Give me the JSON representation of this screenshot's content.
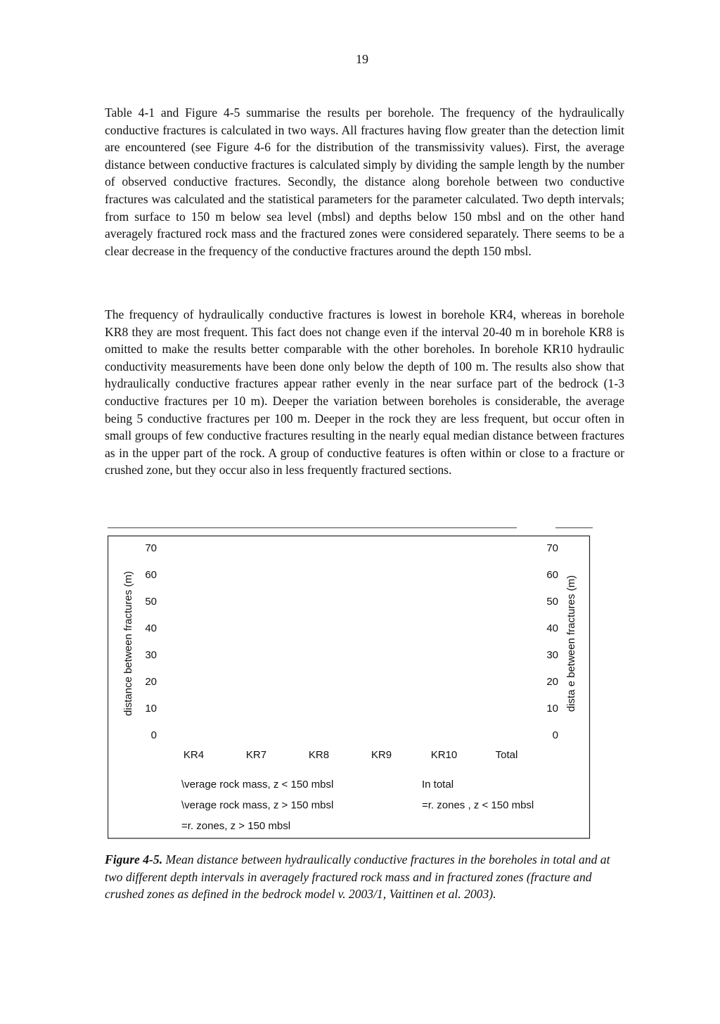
{
  "page_number": 19,
  "paragraphs": [
    "Table 4-1 and Figure 4-5 summarise the results per borehole. The frequency of the hydraulically conductive fractures is calculated in two ways. All fractures having flow greater than the detection limit are encountered (see Figure 4-6 for the distribution of the transmissivity values). First, the average distance between conductive fractures is calculated simply by dividing the sample length by the number of observed conductive fractures. Secondly, the distance along borehole between two conductive fractures was calculated and the statistical parameters for the parameter calculated. Two depth intervals; from surface to 150 m below sea level (mbsl) and depths below 150 mbsl and on the other hand averagely fractured rock mass and the fractured zones were considered separately. There seems to be a clear decrease in the frequency of the conductive fractures around the depth 150 mbsl.",
    "The frequency of hydraulically conductive fractures is lowest in borehole KR4, whereas in borehole KR8 they are most frequent. This fact does not change even if the interval 20-40 m in borehole KR8 is omitted to make the results better comparable with the other boreholes. In borehole KR10 hydraulic conductivity measurements have been done only below the depth of 100 m. The results also show that hydraulically conductive fractures appear rather evenly in the near surface part of the bedrock (1-3 conductive fractures per 10 m). Deeper the variation between boreholes is considerable, the average being 5 conductive fractures per 100 m. Deeper in the rock they are less frequent, but occur often in small groups of few conductive fractures resulting in the nearly equal median distance between fractures as in the upper part of the rock. A group of conductive features is often within or close to a fracture or crushed zone, but they occur also in less frequently fractured sections."
  ],
  "figure": {
    "y_label": "distance between fractures (m)",
    "y2_label": "dista e between fractures (m)",
    "ylim": [
      0,
      70
    ],
    "yticks": [
      0,
      10,
      20,
      30,
      40,
      50,
      60,
      70
    ],
    "categories": [
      "KR4",
      "KR7",
      "KR8",
      "KR9",
      "KR10",
      "Total"
    ],
    "legend": [
      "\\verage rock mass, z < 150 mbsl",
      "In total",
      "\\verage rock mass, z > 150 mbsl",
      "=r. zones , z < 150 mbsl",
      "=r. zones, z > 150 mbsl"
    ]
  },
  "caption": {
    "label": "Figure 4-5.",
    "text": "Mean distance between hydraulically conductive fractures in the boreholes in total and at two different depth intervals in averagely fractured rock mass and in fractured zones (fracture and crushed zones as defined in the bedrock model v. 2003/1, Vaittinen et al. 2003)."
  }
}
